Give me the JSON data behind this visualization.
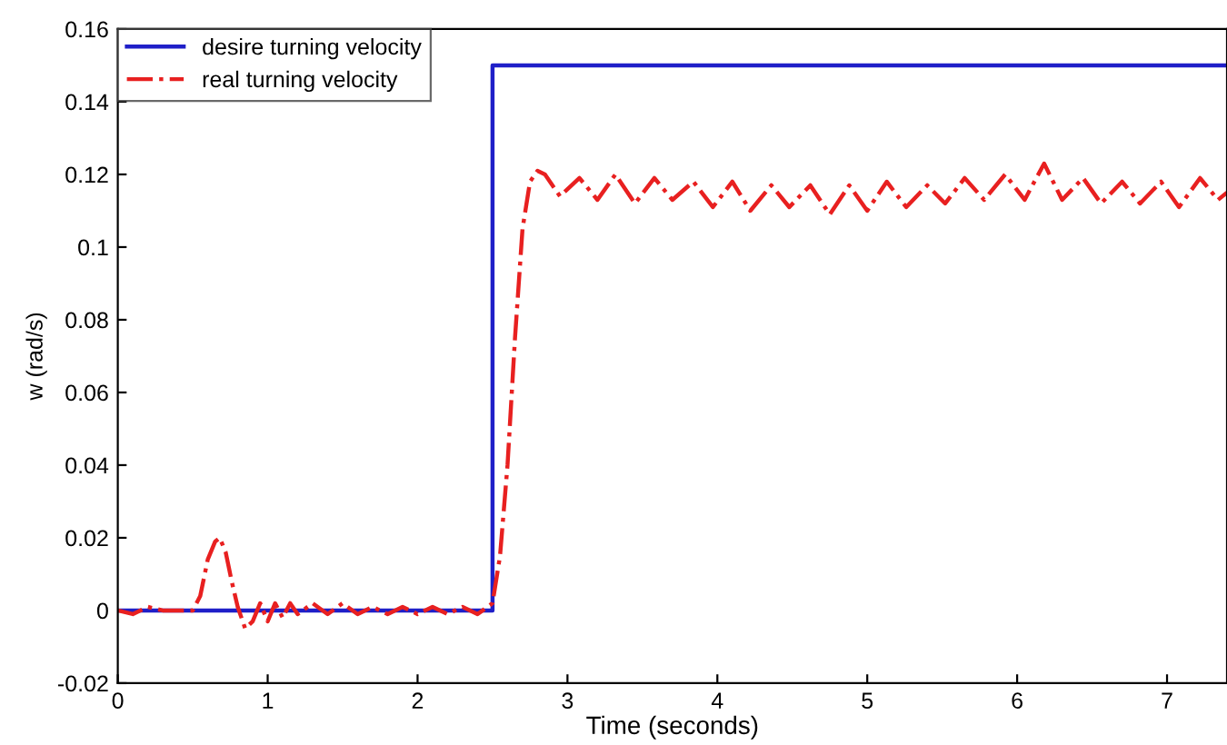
{
  "chart_data": {
    "type": "line",
    "xlabel": "Time (seconds)",
    "ylabel": "w (rad/s)",
    "xlim": [
      0,
      7.4
    ],
    "ylim": [
      -0.02,
      0.16
    ],
    "xticks": [
      0,
      1,
      2,
      3,
      4,
      5,
      6,
      7
    ],
    "yticks": [
      -0.02,
      0,
      0.02,
      0.04,
      0.06,
      0.08,
      0.1,
      0.12,
      0.14,
      0.16
    ],
    "grid": false,
    "legend": "top left",
    "marker": "none",
    "series": [
      {
        "name": "desire turning velocity",
        "color": "#1f1fc8",
        "line_style": "solid",
        "x": [
          0,
          2.5,
          2.5,
          7.4
        ],
        "values": [
          0,
          0,
          0.15,
          0.15
        ]
      },
      {
        "name": "real turning velocity",
        "color": "#e82020",
        "line_style": "dashdot",
        "x": [
          0,
          0.1,
          0.2,
          0.3,
          0.4,
          0.5,
          0.55,
          0.6,
          0.65,
          0.68,
          0.72,
          0.76,
          0.8,
          0.85,
          0.9,
          0.95,
          1.0,
          1.05,
          1.1,
          1.15,
          1.2,
          1.3,
          1.4,
          1.5,
          1.6,
          1.7,
          1.8,
          1.9,
          2.0,
          2.1,
          2.2,
          2.3,
          2.4,
          2.5,
          2.55,
          2.6,
          2.65,
          2.7,
          2.75,
          2.8,
          2.85,
          2.95,
          3.08,
          3.2,
          3.32,
          3.45,
          3.58,
          3.7,
          3.84,
          3.97,
          4.1,
          4.22,
          4.36,
          4.48,
          4.62,
          4.75,
          4.88,
          5.0,
          5.13,
          5.26,
          5.4,
          5.52,
          5.65,
          5.78,
          5.92,
          6.05,
          6.18,
          6.3,
          6.44,
          6.56,
          6.7,
          6.82,
          6.96,
          7.08,
          7.22,
          7.34,
          7.4
        ],
        "values": [
          0,
          -0.001,
          0.001,
          0,
          0,
          0,
          0.004,
          0.014,
          0.019,
          0.02,
          0.016,
          0.008,
          0.001,
          -0.005,
          -0.003,
          0.002,
          -0.003,
          0.002,
          -0.002,
          0.002,
          -0.001,
          0.002,
          -0.001,
          0.002,
          -0.001,
          0.001,
          -0.001,
          0.001,
          -0.001,
          0.001,
          -0.001,
          0.001,
          -0.001,
          0.002,
          0.015,
          0.04,
          0.075,
          0.105,
          0.118,
          0.121,
          0.12,
          0.114,
          0.119,
          0.113,
          0.12,
          0.112,
          0.119,
          0.113,
          0.118,
          0.111,
          0.118,
          0.11,
          0.117,
          0.111,
          0.117,
          0.109,
          0.117,
          0.11,
          0.118,
          0.111,
          0.117,
          0.112,
          0.119,
          0.113,
          0.12,
          0.113,
          0.123,
          0.113,
          0.119,
          0.112,
          0.118,
          0.112,
          0.118,
          0.111,
          0.119,
          0.113,
          0.115
        ]
      }
    ]
  }
}
